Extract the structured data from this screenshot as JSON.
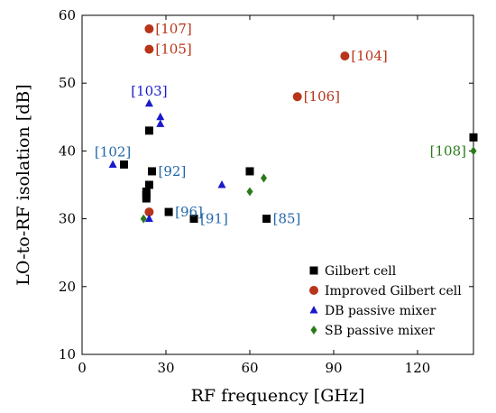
{
  "chart_data": {
    "type": "scatter",
    "xlabel": "RF frequency [GHz]",
    "ylabel": "LO-to-RF isolation [dB]",
    "xlim": [
      0,
      140
    ],
    "ylim": [
      10,
      60
    ],
    "xticks": [
      0,
      30,
      60,
      90,
      120
    ],
    "yticks": [
      10,
      20,
      30,
      40,
      50,
      60
    ],
    "grid": false,
    "legend_position": "bottom-right",
    "series": [
      {
        "name": "Gilbert cell",
        "marker": "square",
        "color": "#000000",
        "points": [
          {
            "x": 15,
            "y": 38
          },
          {
            "x": 24,
            "y": 43
          },
          {
            "x": 25,
            "y": 37
          },
          {
            "x": 24,
            "y": 35
          },
          {
            "x": 23,
            "y": 34
          },
          {
            "x": 23,
            "y": 33.5
          },
          {
            "x": 23,
            "y": 33
          },
          {
            "x": 31,
            "y": 31
          },
          {
            "x": 40,
            "y": 30
          },
          {
            "x": 60,
            "y": 37
          },
          {
            "x": 66,
            "y": 30
          },
          {
            "x": 140,
            "y": 42
          }
        ]
      },
      {
        "name": "Improved Gilbert cell",
        "marker": "circle",
        "color": "#b8351a",
        "points": [
          {
            "x": 24,
            "y": 58
          },
          {
            "x": 24,
            "y": 55
          },
          {
            "x": 24,
            "y": 31
          },
          {
            "x": 77,
            "y": 48
          },
          {
            "x": 94,
            "y": 54
          }
        ]
      },
      {
        "name": "DB passive mixer",
        "marker": "triangle",
        "color": "#1a1acc",
        "points": [
          {
            "x": 11,
            "y": 38
          },
          {
            "x": 24,
            "y": 47
          },
          {
            "x": 28,
            "y": 45
          },
          {
            "x": 28,
            "y": 44
          },
          {
            "x": 50,
            "y": 35
          },
          {
            "x": 24,
            "y": 30
          }
        ]
      },
      {
        "name": "SB passive mixer",
        "marker": "diamond",
        "color": "#2a7a1a",
        "points": [
          {
            "x": 22,
            "y": 30
          },
          {
            "x": 60,
            "y": 34
          },
          {
            "x": 65,
            "y": 36
          },
          {
            "x": 140,
            "y": 40
          }
        ]
      }
    ],
    "annotations": [
      {
        "text": "[107]",
        "x": 24,
        "y": 58,
        "color": "#b8351a",
        "anchor": "start"
      },
      {
        "text": "[105]",
        "x": 24,
        "y": 55,
        "color": "#b8351a",
        "anchor": "start"
      },
      {
        "text": "[104]",
        "x": 94,
        "y": 54,
        "color": "#b8351a",
        "anchor": "start"
      },
      {
        "text": "[103]",
        "x": 24,
        "y": 47,
        "color": "#1a1acc",
        "anchor": "middle"
      },
      {
        "text": "[106]",
        "x": 77,
        "y": 48,
        "color": "#b8351a",
        "anchor": "start"
      },
      {
        "text": "[102]",
        "x": 11,
        "y": 38,
        "color": "#2266aa",
        "anchor": "middle"
      },
      {
        "text": "[92]",
        "x": 25,
        "y": 37,
        "color": "#2266aa",
        "anchor": "start"
      },
      {
        "text": "[96]",
        "x": 31,
        "y": 31,
        "color": "#2266aa",
        "anchor": "start"
      },
      {
        "text": "[91]",
        "x": 40,
        "y": 30,
        "color": "#2266aa",
        "anchor": "start"
      },
      {
        "text": "[85]",
        "x": 66,
        "y": 30,
        "color": "#2266aa",
        "anchor": "start"
      },
      {
        "text": "[108]",
        "x": 140,
        "y": 40,
        "color": "#2a7a1a",
        "anchor": "end"
      }
    ]
  }
}
